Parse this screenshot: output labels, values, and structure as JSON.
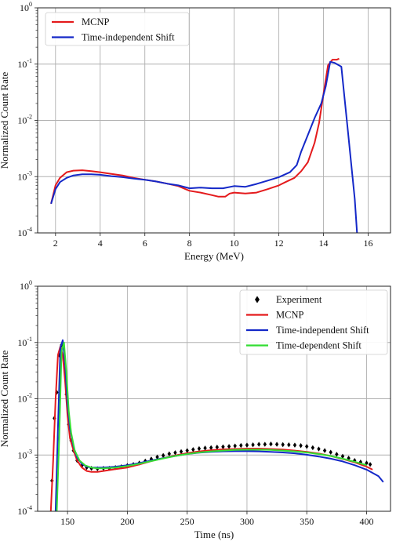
{
  "chart_data": [
    {
      "type": "line",
      "xlabel": "Energy (MeV)",
      "ylabel": "Normalized Count Rate",
      "xlim": [
        1.2,
        17.0
      ],
      "ylim": [
        0.0001,
        1
      ],
      "yscale": "log",
      "xticks": [
        "2",
        "4",
        "6",
        "8",
        "10",
        "12",
        "14",
        "16"
      ],
      "yticks": [
        {
          "base": "10",
          "exp": "-4"
        },
        {
          "base": "10",
          "exp": "-3"
        },
        {
          "base": "10",
          "exp": "-2"
        },
        {
          "base": "10",
          "exp": "-1"
        },
        {
          "base": "10",
          "exp": "0"
        }
      ],
      "grid": true,
      "legend_position": "top-left",
      "series": [
        {
          "name": "MCNP",
          "color": "#e41a1c",
          "x": [
            1.8,
            2.0,
            2.2,
            2.5,
            2.8,
            3.2,
            3.6,
            4.0,
            4.5,
            5.0,
            5.5,
            6.0,
            6.5,
            7.0,
            7.5,
            8.0,
            8.5,
            9.0,
            9.3,
            9.6,
            9.8,
            10.0,
            10.5,
            11.0,
            11.5,
            12.0,
            12.3,
            12.7,
            13.0,
            13.3,
            13.6,
            13.8,
            14.0,
            14.2,
            14.4,
            14.6,
            14.7
          ],
          "y": [
            0.00033,
            0.0007,
            0.00095,
            0.0012,
            0.00128,
            0.0013,
            0.00125,
            0.0012,
            0.00112,
            0.00105,
            0.00095,
            0.00088,
            0.00082,
            0.00075,
            0.00068,
            0.00056,
            0.00052,
            0.00047,
            0.00044,
            0.00044,
            0.0005,
            0.00052,
            0.0005,
            0.00052,
            0.0006,
            0.0007,
            0.0008,
            0.00095,
            0.00125,
            0.0018,
            0.004,
            0.009,
            0.03,
            0.095,
            0.12,
            0.12,
            0.125
          ]
        },
        {
          "name": "Time-independent Shift",
          "color": "#1428c8",
          "x": [
            1.8,
            2.0,
            2.2,
            2.5,
            2.8,
            3.2,
            3.6,
            4.0,
            4.5,
            5.0,
            5.5,
            6.0,
            6.5,
            7.0,
            7.5,
            8.0,
            8.5,
            9.0,
            9.5,
            10.0,
            10.5,
            11.0,
            11.5,
            12.0,
            12.5,
            12.8,
            13.0,
            13.3,
            13.6,
            13.9,
            14.1,
            14.3,
            14.5,
            14.8,
            15.1,
            15.4,
            15.5
          ],
          "y": [
            0.00033,
            0.0006,
            0.0008,
            0.00095,
            0.00105,
            0.0011,
            0.0011,
            0.00108,
            0.00102,
            0.00098,
            0.00092,
            0.00088,
            0.00082,
            0.00075,
            0.0007,
            0.00062,
            0.00064,
            0.00062,
            0.00062,
            0.00068,
            0.00066,
            0.00074,
            0.00085,
            0.00098,
            0.0012,
            0.0016,
            0.0028,
            0.0055,
            0.011,
            0.02,
            0.04,
            0.11,
            0.105,
            0.09,
            0.006,
            0.0004,
            0.0001
          ]
        }
      ]
    },
    {
      "type": "line",
      "xlabel": "Time (ns)",
      "ylabel": "Normalized Count Rate",
      "xlim": [
        125,
        420
      ],
      "ylim": [
        0.0001,
        1
      ],
      "yscale": "log",
      "xticks": [
        "150",
        "200",
        "250",
        "300",
        "350",
        "400"
      ],
      "yticks": [
        {
          "base": "10",
          "exp": "-4"
        },
        {
          "base": "10",
          "exp": "-3"
        },
        {
          "base": "10",
          "exp": "-2"
        },
        {
          "base": "10",
          "exp": "-1"
        },
        {
          "base": "10",
          "exp": "0"
        }
      ],
      "grid": true,
      "legend_position": "top-right",
      "series": [
        {
          "name": "Experiment",
          "color": "#000000",
          "marker": "diamond",
          "x": [
            137,
            139,
            141,
            143,
            145,
            147,
            149,
            151,
            153,
            155,
            158,
            162,
            166,
            170,
            175,
            180,
            185,
            190,
            195,
            200,
            205,
            210,
            215,
            220,
            225,
            230,
            235,
            240,
            245,
            250,
            255,
            260,
            265,
            270,
            275,
            280,
            285,
            290,
            295,
            300,
            305,
            310,
            315,
            320,
            325,
            330,
            335,
            340,
            345,
            350,
            355,
            360,
            365,
            370,
            375,
            380,
            385,
            390,
            395,
            400,
            403
          ],
          "y": [
            0.00035,
            0.0045,
            0.013,
            0.06,
            0.09,
            0.055,
            0.012,
            0.0035,
            0.0018,
            0.0012,
            0.0008,
            0.00065,
            0.0006,
            0.00058,
            0.00057,
            0.00058,
            0.00058,
            0.0006,
            0.00062,
            0.00065,
            0.00068,
            0.00072,
            0.00078,
            0.00085,
            0.00092,
            0.00098,
            0.00105,
            0.0011,
            0.00115,
            0.0012,
            0.00125,
            0.0013,
            0.00133,
            0.00135,
            0.00138,
            0.0014,
            0.00142,
            0.00145,
            0.00148,
            0.0015,
            0.00152,
            0.00155,
            0.00155,
            0.00157,
            0.00155,
            0.00153,
            0.00152,
            0.0015,
            0.00147,
            0.00142,
            0.00135,
            0.00128,
            0.0012,
            0.00112,
            0.00103,
            0.00095,
            0.00088,
            0.0008,
            0.00075,
            0.00072,
            0.00068
          ]
        },
        {
          "name": "MCNP",
          "color": "#e41a1c",
          "x": [
            136,
            138,
            140,
            142,
            144,
            146,
            148,
            150,
            152,
            155,
            158,
            162,
            166,
            170,
            175,
            180,
            190,
            200,
            210,
            220,
            230,
            240,
            250,
            260,
            270,
            280,
            290,
            300,
            310,
            320,
            330,
            340,
            350,
            360,
            370,
            380,
            390,
            400,
            405
          ],
          "y": [
            0.0001,
            0.0008,
            0.01,
            0.06,
            0.085,
            0.06,
            0.02,
            0.005,
            0.002,
            0.0012,
            0.0008,
            0.0006,
            0.00052,
            0.0005,
            0.0005,
            0.00052,
            0.00056,
            0.0006,
            0.00068,
            0.00078,
            0.00088,
            0.00098,
            0.00108,
            0.00116,
            0.00122,
            0.00126,
            0.00128,
            0.0013,
            0.0013,
            0.00128,
            0.00125,
            0.0012,
            0.00114,
            0.00106,
            0.00096,
            0.00085,
            0.00074,
            0.00062,
            0.00055
          ]
        },
        {
          "name": "Time-independent Shift",
          "color": "#1428c8",
          "x": [
            140,
            142,
            144,
            146,
            148,
            150,
            152,
            155,
            158,
            162,
            166,
            170,
            175,
            180,
            190,
            200,
            210,
            220,
            230,
            240,
            250,
            260,
            270,
            280,
            290,
            300,
            310,
            320,
            330,
            340,
            350,
            360,
            370,
            380,
            390,
            400,
            410,
            414
          ],
          "y": [
            0.0001,
            0.003,
            0.08,
            0.11,
            0.04,
            0.008,
            0.003,
            0.0014,
            0.0009,
            0.0007,
            0.00062,
            0.0006,
            0.0006,
            0.0006,
            0.00062,
            0.00066,
            0.00072,
            0.0008,
            0.00088,
            0.00096,
            0.00104,
            0.0011,
            0.00114,
            0.00116,
            0.00117,
            0.00117,
            0.00116,
            0.00114,
            0.00111,
            0.00107,
            0.00101,
            0.00094,
            0.00086,
            0.00077,
            0.00066,
            0.00055,
            0.00042,
            0.00033
          ]
        },
        {
          "name": "Time-dependent Shift",
          "color": "#33dd33",
          "x": [
            141,
            143,
            145,
            147,
            149,
            151,
            153,
            156,
            160,
            165,
            170,
            175,
            180,
            190,
            200,
            210,
            220,
            230,
            240,
            250,
            260,
            270,
            280,
            290,
            300,
            310,
            320,
            330,
            340,
            350,
            360,
            370,
            380,
            390,
            400
          ],
          "y": [
            0.0001,
            0.002,
            0.07,
            0.1,
            0.03,
            0.006,
            0.0025,
            0.0012,
            0.0008,
            0.00065,
            0.0006,
            0.00058,
            0.00058,
            0.0006,
            0.00064,
            0.0007,
            0.00078,
            0.00087,
            0.00096,
            0.00104,
            0.00111,
            0.00116,
            0.0012,
            0.00123,
            0.00124,
            0.00124,
            0.00123,
            0.0012,
            0.00116,
            0.00111,
            0.00104,
            0.00096,
            0.00086,
            0.00076,
            0.00066
          ]
        }
      ]
    }
  ]
}
